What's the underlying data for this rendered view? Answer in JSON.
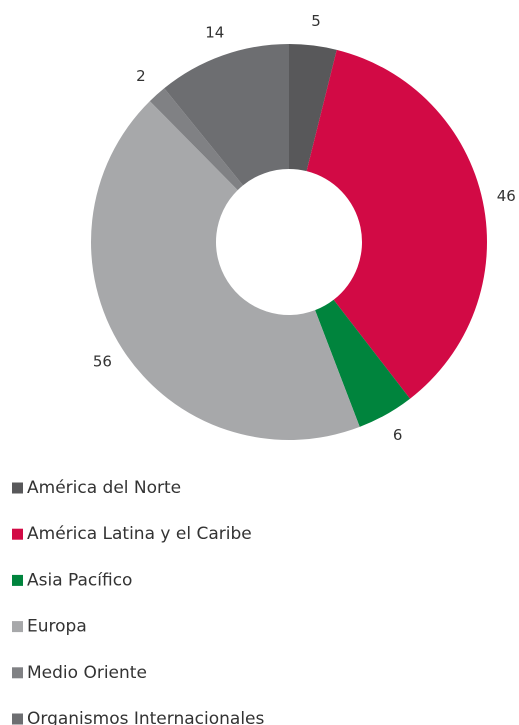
{
  "chart_data": {
    "type": "donut",
    "categories": [
      "América del Norte",
      "América Latina y el Caribe",
      "Asia Pacífico",
      "Europa",
      "Medio Oriente",
      "Organismos Internacionales"
    ],
    "values": [
      5,
      46,
      6,
      56,
      2,
      14
    ],
    "colors": [
      "#58585a",
      "#d20a45",
      "#00843d",
      "#a7a8aa",
      "#808184",
      "#6d6e71"
    ],
    "legend": "bottom-left"
  }
}
